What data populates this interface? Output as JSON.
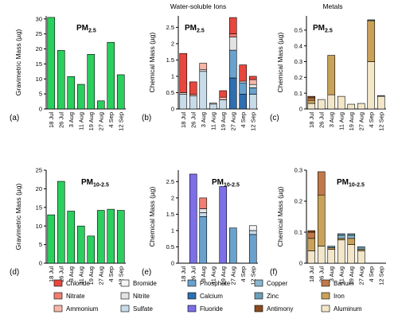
{
  "column_titles": [
    "Water-soluble Ions",
    "Metals"
  ],
  "pm25_main": "PM",
  "pm25_sub": "2.5",
  "pm1025_main": "PM",
  "pm1025_sub": "10-2.5",
  "legend": [
    {
      "name": "Chloride",
      "color": "#e8473e"
    },
    {
      "name": "Nitrate",
      "color": "#f07f73"
    },
    {
      "name": "Ammonium",
      "color": "#f6b6a8"
    },
    {
      "name": "Bromide",
      "color": "#f4f4f4"
    },
    {
      "name": "Nitrite",
      "color": "#e3e3e3"
    },
    {
      "name": "Sulfate",
      "color": "#c7dbe9"
    },
    {
      "name": "Phosphate",
      "color": "#6aa2cd"
    },
    {
      "name": "Calcium",
      "color": "#2f6fb0"
    },
    {
      "name": "Fluoride",
      "color": "#7c6fe8"
    },
    {
      "name": "Copper",
      "color": "#8ab6cc"
    },
    {
      "name": "Zinc",
      "color": "#6c9fb7"
    },
    {
      "name": "Antimony",
      "color": "#8b4a1f"
    },
    {
      "name": "Barium",
      "color": "#c07a4a"
    },
    {
      "name": "Iron",
      "color": "#c9a25a"
    },
    {
      "name": "Aluminum",
      "color": "#f3e7c9"
    }
  ],
  "chart_data": [
    {
      "id": "a",
      "panel_label": "(a)",
      "type": "bar",
      "ylabel": "Gravimetric Mass (µg)",
      "ylim": [
        0,
        31
      ],
      "yticks": [
        0,
        5,
        10,
        15,
        20,
        25,
        30
      ],
      "categories": [
        "18 Jul",
        "26 Jul",
        "3 Aug",
        "11 Aug",
        "19 Aug",
        "27 Aug",
        "4 Sep",
        "12 Sep"
      ],
      "series": [
        {
          "color": "#2bcf5e",
          "values": [
            30.5,
            19.5,
            10.8,
            8.2,
            18.2,
            2.7,
            22.2,
            11.4
          ]
        }
      ]
    },
    {
      "id": "b",
      "panel_label": "(b)",
      "type": "stacked-bar",
      "ylabel": "Chemical Mass (µg)",
      "ylim": [
        0,
        2.85
      ],
      "yticks": [
        0,
        0.5,
        1,
        1.5,
        2,
        2.5
      ],
      "categories": [
        "18 Jul",
        "26 Jul",
        "3 Aug",
        "11 Aug",
        "19 Aug",
        "27 Aug",
        "4 Sep",
        "12 Sep"
      ],
      "series": [
        {
          "name": "Sulfate",
          "color": "#c7dbe9",
          "values": [
            0.45,
            0.4,
            1.15,
            0.15,
            0.28,
            0,
            0,
            0.45
          ]
        },
        {
          "name": "Calcium",
          "color": "#2f6fb0",
          "values": [
            0,
            0,
            0,
            0,
            0,
            0.95,
            0.45,
            0
          ]
        },
        {
          "name": "Phosphate",
          "color": "#6aa2cd",
          "values": [
            0,
            0,
            0,
            0,
            0,
            0.85,
            0.35,
            0.2
          ]
        },
        {
          "name": "Nitrite",
          "color": "#e3e3e3",
          "values": [
            0.05,
            0,
            0.05,
            0.03,
            0,
            0.4,
            0.05,
            0.1
          ]
        },
        {
          "name": "Ammonium",
          "color": "#f6b6a8",
          "values": [
            0,
            0.05,
            0.2,
            0,
            0.08,
            0,
            0,
            0.15
          ]
        },
        {
          "name": "Nitrate",
          "color": "#f07f73",
          "values": [
            0,
            0,
            0,
            0,
            0,
            0.1,
            0,
            0
          ]
        },
        {
          "name": "Chloride",
          "color": "#e8473e",
          "values": [
            1.2,
            0.38,
            0,
            0,
            0.2,
            0.5,
            0.5,
            0.1
          ]
        }
      ]
    },
    {
      "id": "c",
      "panel_label": "(c)",
      "type": "stacked-bar",
      "ylabel": "Chemical Mass (µg)",
      "ylim": [
        0,
        0.59
      ],
      "yticks": [
        0,
        0.1,
        0.2,
        0.3,
        0.4,
        0.5
      ],
      "categories": [
        "18 Jul",
        "26 Jul",
        "3 Aug",
        "11 Aug",
        "19 Aug",
        "27 Aug",
        "4 Sep",
        "12 Sep"
      ],
      "series": [
        {
          "name": "Aluminum",
          "color": "#f3e7c9",
          "values": [
            0.035,
            0.06,
            0.09,
            0.08,
            0.03,
            0.035,
            0.3,
            0.08
          ]
        },
        {
          "name": "Iron",
          "color": "#c9a25a",
          "values": [
            0.02,
            0,
            0.25,
            0,
            0,
            0,
            0.26,
            0
          ]
        },
        {
          "name": "Barium",
          "color": "#c07a4a",
          "values": [
            0.015,
            0,
            0,
            0,
            0,
            0,
            0,
            0
          ]
        },
        {
          "name": "Zinc",
          "color": "#6c9fb7",
          "values": [
            0,
            0,
            0,
            0,
            0,
            0,
            0.005,
            0.005
          ]
        },
        {
          "name": "Antimony",
          "color": "#8b4a1f",
          "values": [
            0.01,
            0,
            0,
            0,
            0,
            0,
            0,
            0
          ]
        }
      ]
    },
    {
      "id": "d",
      "panel_label": "(d)",
      "type": "bar",
      "ylabel": "Gravimetric Mass (µg)",
      "ylim": [
        0,
        25
      ],
      "yticks": [
        0,
        5,
        10,
        15,
        20,
        25
      ],
      "categories": [
        "18 Jul",
        "26 Jul",
        "3 Aug",
        "11 Aug",
        "19 Aug",
        "27 Aug",
        "4 Sep",
        "12 Sep"
      ],
      "series": [
        {
          "color": "#2bcf5e",
          "values": [
            13.0,
            22.0,
            14.0,
            10.0,
            7.3,
            14.2,
            14.5,
            14.2
          ]
        }
      ]
    },
    {
      "id": "e",
      "panel_label": "(e)",
      "type": "stacked-bar",
      "ylabel": "Chemical Mass (µg)",
      "ylim": [
        0,
        2.85
      ],
      "yticks": [
        0,
        0.5,
        1,
        1.5,
        2,
        2.5
      ],
      "categories": [
        "18 Jul",
        "26 Jul",
        "3 Aug",
        "11 Aug",
        "19 Aug",
        "27 Aug",
        "4 Sep",
        "12 Sep"
      ],
      "series": [
        {
          "name": "Fluoride",
          "color": "#7c6fe8",
          "values": [
            0,
            2.73,
            0,
            0,
            2.35,
            0,
            0,
            0
          ]
        },
        {
          "name": "Phosphate",
          "color": "#6aa2cd",
          "values": [
            0,
            0,
            1.43,
            0,
            0,
            1.08,
            0,
            0.88
          ]
        },
        {
          "name": "Sulfate",
          "color": "#c7dbe9",
          "values": [
            0,
            0,
            0.12,
            0,
            0,
            0,
            0,
            0.12
          ]
        },
        {
          "name": "Nitrite",
          "color": "#e3e3e3",
          "values": [
            0,
            0,
            0.12,
            0,
            0,
            0,
            0,
            0
          ]
        },
        {
          "name": "Nitrate",
          "color": "#f07f73",
          "values": [
            0,
            0,
            0.33,
            0,
            0,
            0,
            0,
            0
          ]
        },
        {
          "name": "Bromide",
          "color": "#f4f4f4",
          "values": [
            0,
            0,
            0,
            0,
            0,
            0,
            0,
            0.15
          ]
        }
      ]
    },
    {
      "id": "f",
      "panel_label": "(f)",
      "type": "stacked-bar",
      "ylabel": "Chemical Mass (µg)",
      "ylim": [
        0,
        0.3
      ],
      "yticks": [
        0,
        0.1,
        0.2,
        0.3
      ],
      "categories": [
        "18 Jul",
        "26 Jul",
        "3 Aug",
        "11 Aug",
        "19 Aug",
        "27 Aug",
        "4 Sep",
        "12 Sep"
      ],
      "series": [
        {
          "name": "Aluminum",
          "color": "#f3e7c9",
          "values": [
            0.04,
            0.055,
            0.045,
            0.075,
            0.06,
            0.04,
            0,
            0
          ]
        },
        {
          "name": "Iron",
          "color": "#c9a25a",
          "values": [
            0.04,
            0.165,
            0.005,
            0.005,
            0.02,
            0.005,
            0,
            0
          ]
        },
        {
          "name": "Barium",
          "color": "#c07a4a",
          "values": [
            0.02,
            0.075,
            0,
            0,
            0,
            0,
            0,
            0
          ]
        },
        {
          "name": "Copper",
          "color": "#8ab6cc",
          "values": [
            0,
            0,
            0,
            0.01,
            0.01,
            0,
            0,
            0
          ]
        },
        {
          "name": "Zinc",
          "color": "#6c9fb7",
          "values": [
            0,
            0,
            0.005,
            0.005,
            0.005,
            0.008,
            0,
            0
          ]
        },
        {
          "name": "Antimony",
          "color": "#8b4a1f",
          "values": [
            0.005,
            0,
            0,
            0,
            0,
            0,
            0,
            0
          ]
        }
      ]
    }
  ]
}
